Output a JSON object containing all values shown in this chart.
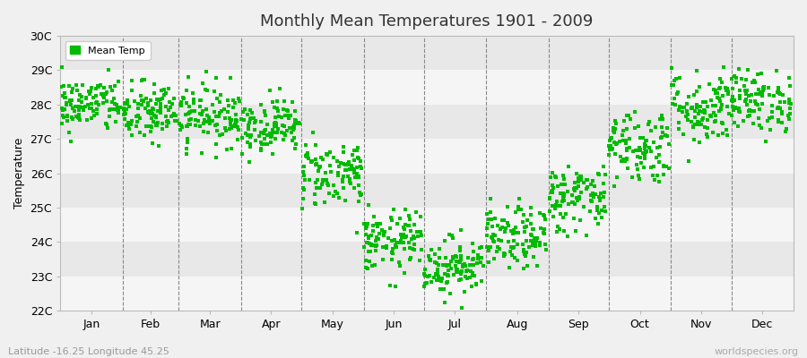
{
  "title": "Monthly Mean Temperatures 1901 - 2009",
  "xlabel_left": "Latitude -16.25 Longitude 45.25",
  "xlabel_right": "worldspecies.org",
  "ylabel": "Temperature",
  "legend_label": "Mean Temp",
  "background_color": "#f0f0f0",
  "plot_bg_color": "#f0f0f0",
  "stripe_light": "#f5f5f5",
  "stripe_dark": "#e8e8e8",
  "marker_color": "#00bb00",
  "marker_size": 6,
  "ylim": [
    22,
    30
  ],
  "yticks": [
    22,
    23,
    24,
    25,
    26,
    27,
    28,
    29,
    30
  ],
  "ytick_labels": [
    "22C",
    "23C",
    "24C",
    "25C",
    "26C",
    "27C",
    "28C",
    "29C",
    "30C"
  ],
  "months": [
    "Jan",
    "Feb",
    "Mar",
    "Apr",
    "May",
    "Jun",
    "Jul",
    "Aug",
    "Sep",
    "Oct",
    "Nov",
    "Dec"
  ],
  "month_days": [
    31,
    28,
    31,
    30,
    31,
    30,
    31,
    31,
    30,
    31,
    30,
    31
  ],
  "mean_temps": [
    28.0,
    27.75,
    27.7,
    27.4,
    26.0,
    24.0,
    23.3,
    24.1,
    25.3,
    26.8,
    27.9,
    28.1
  ],
  "std_temps": [
    0.4,
    0.45,
    0.45,
    0.4,
    0.5,
    0.45,
    0.42,
    0.45,
    0.5,
    0.55,
    0.55,
    0.45
  ],
  "n_years": 109,
  "seed": 42
}
